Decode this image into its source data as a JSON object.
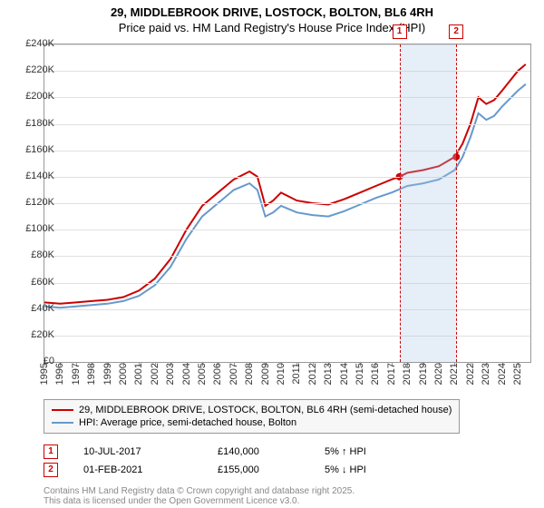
{
  "title": "29, MIDDLEBROOK DRIVE, LOSTOCK, BOLTON, BL6 4RH",
  "subtitle": "Price paid vs. HM Land Registry's House Price Index (HPI)",
  "chart": {
    "type": "line",
    "background_color": "#ffffff",
    "grid_color": "#e0e0e0",
    "border_color": "#999999",
    "x_min": 1995,
    "x_max": 2025.8,
    "y_min": 0,
    "y_max": 240000,
    "y_ticks": [
      0,
      20000,
      40000,
      60000,
      80000,
      100000,
      120000,
      140000,
      160000,
      180000,
      200000,
      220000,
      240000
    ],
    "y_tick_labels": [
      "£0",
      "£20K",
      "£40K",
      "£60K",
      "£80K",
      "£100K",
      "£120K",
      "£140K",
      "£160K",
      "£180K",
      "£200K",
      "£220K",
      "£240K"
    ],
    "x_ticks": [
      1995,
      1996,
      1997,
      1998,
      1999,
      2000,
      2001,
      2002,
      2003,
      2004,
      2005,
      2006,
      2007,
      2008,
      2009,
      2010,
      2011,
      2012,
      2013,
      2014,
      2015,
      2016,
      2017,
      2018,
      2019,
      2020,
      2021,
      2022,
      2023,
      2024,
      2025
    ],
    "highlight_band": {
      "x_start": 2017.5,
      "x_end": 2021.1,
      "color": "rgba(173,200,230,0.3)"
    },
    "v_refs": [
      {
        "x": 2017.5,
        "label": "1",
        "color": "#cc0000"
      },
      {
        "x": 2021.1,
        "label": "2",
        "color": "#cc0000"
      }
    ],
    "series": [
      {
        "name": "29, MIDDLEBROOK DRIVE, LOSTOCK, BOLTON, BL6 4RH (semi-detached house)",
        "color": "#cc0000",
        "line_width": 2,
        "marker_points": [
          {
            "x": 2017.5,
            "y": 140000
          },
          {
            "x": 2021.1,
            "y": 155000
          }
        ],
        "data": [
          [
            1995,
            45000
          ],
          [
            1996,
            44000
          ],
          [
            1997,
            45000
          ],
          [
            1998,
            46000
          ],
          [
            1999,
            47000
          ],
          [
            2000,
            49000
          ],
          [
            2001,
            54000
          ],
          [
            2002,
            63000
          ],
          [
            2003,
            78000
          ],
          [
            2004,
            100000
          ],
          [
            2005,
            118000
          ],
          [
            2006,
            128000
          ],
          [
            2007,
            138000
          ],
          [
            2008,
            144000
          ],
          [
            2008.5,
            140000
          ],
          [
            2009,
            118000
          ],
          [
            2009.5,
            122000
          ],
          [
            2010,
            128000
          ],
          [
            2011,
            122000
          ],
          [
            2012,
            120000
          ],
          [
            2013,
            119000
          ],
          [
            2014,
            123000
          ],
          [
            2015,
            128000
          ],
          [
            2016,
            133000
          ],
          [
            2017,
            138000
          ],
          [
            2017.5,
            140000
          ],
          [
            2018,
            143000
          ],
          [
            2019,
            145000
          ],
          [
            2020,
            148000
          ],
          [
            2021,
            155000
          ],
          [
            2021.5,
            165000
          ],
          [
            2022,
            180000
          ],
          [
            2022.5,
            200000
          ],
          [
            2023,
            195000
          ],
          [
            2023.5,
            198000
          ],
          [
            2024,
            205000
          ],
          [
            2025,
            220000
          ],
          [
            2025.5,
            225000
          ]
        ]
      },
      {
        "name": "HPI: Average price, semi-detached house, Bolton",
        "color": "#6699cc",
        "line_width": 2,
        "data": [
          [
            1995,
            42000
          ],
          [
            1996,
            41000
          ],
          [
            1997,
            42000
          ],
          [
            1998,
            43000
          ],
          [
            1999,
            44000
          ],
          [
            2000,
            46000
          ],
          [
            2001,
            50000
          ],
          [
            2002,
            58000
          ],
          [
            2003,
            72000
          ],
          [
            2004,
            93000
          ],
          [
            2005,
            110000
          ],
          [
            2006,
            120000
          ],
          [
            2007,
            130000
          ],
          [
            2008,
            135000
          ],
          [
            2008.5,
            130000
          ],
          [
            2009,
            110000
          ],
          [
            2009.5,
            113000
          ],
          [
            2010,
            118000
          ],
          [
            2011,
            113000
          ],
          [
            2012,
            111000
          ],
          [
            2013,
            110000
          ],
          [
            2014,
            114000
          ],
          [
            2015,
            119000
          ],
          [
            2016,
            124000
          ],
          [
            2017,
            128000
          ],
          [
            2018,
            133000
          ],
          [
            2019,
            135000
          ],
          [
            2020,
            138000
          ],
          [
            2021,
            145000
          ],
          [
            2021.5,
            155000
          ],
          [
            2022,
            170000
          ],
          [
            2022.5,
            188000
          ],
          [
            2023,
            183000
          ],
          [
            2023.5,
            186000
          ],
          [
            2024,
            193000
          ],
          [
            2025,
            205000
          ],
          [
            2025.5,
            210000
          ]
        ]
      }
    ]
  },
  "legend": {
    "items": [
      {
        "color": "#cc0000",
        "label": "29, MIDDLEBROOK DRIVE, LOSTOCK, BOLTON, BL6 4RH (semi-detached house)"
      },
      {
        "color": "#6699cc",
        "label": "HPI: Average price, semi-detached house, Bolton"
      }
    ]
  },
  "sales_table": {
    "rows": [
      {
        "marker": "1",
        "date": "10-JUL-2017",
        "price": "£140,000",
        "delta": "5% ↑ HPI"
      },
      {
        "marker": "2",
        "date": "01-FEB-2021",
        "price": "£155,000",
        "delta": "5% ↓ HPI"
      }
    ]
  },
  "footer": "Contains HM Land Registry data © Crown copyright and database right 2025.\nThis data is licensed under the Open Government Licence v3.0."
}
